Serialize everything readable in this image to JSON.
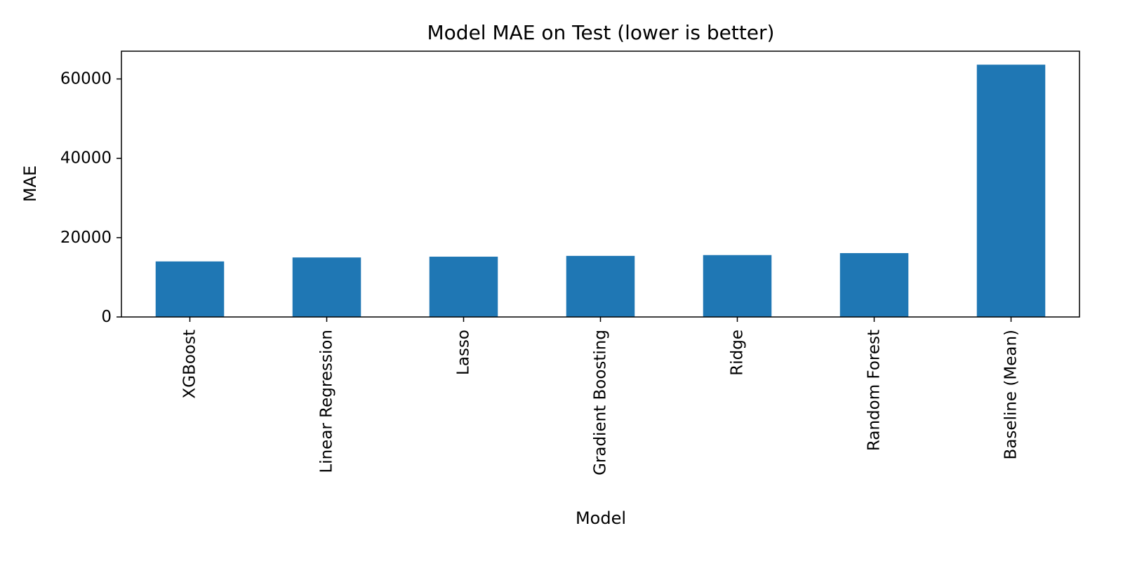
{
  "chart_data": {
    "type": "bar",
    "title": "Model MAE on Test (lower is better)",
    "xlabel": "Model",
    "ylabel": "MAE",
    "categories": [
      "XGBoost",
      "Linear Regression",
      "Lasso",
      "Gradient Boosting",
      "Ridge",
      "Random Forest",
      "Baseline (Mean)"
    ],
    "values": [
      14000,
      15000,
      15200,
      15400,
      15600,
      16100,
      63600
    ],
    "ylim": [
      0,
      67000
    ],
    "yticks": [
      0,
      20000,
      40000,
      60000
    ],
    "ytick_labels": [
      "0",
      "20000",
      "40000",
      "60000"
    ],
    "grid": false,
    "legend": "none",
    "bar_color": "#1f77b4"
  }
}
